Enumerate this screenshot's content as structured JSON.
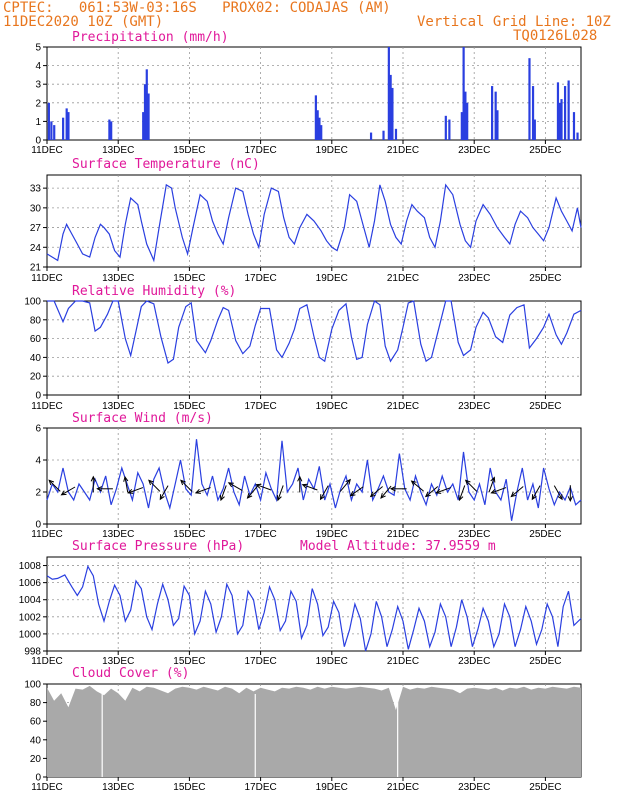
{
  "header": {
    "line1": "CPTEC:   061:53W-03:16S   PROX02: CODAJAS (AM)",
    "line2_left": "11DEC2020 10Z (GMT)",
    "line2_right": "Vertical Grid Line: 10Z",
    "line3_right": "TQ0126L028"
  },
  "colors": {
    "header": "#e8761e",
    "title": "#e0189a",
    "series": "#2a3fe0",
    "cloud": "#a9a9a9",
    "grid": "#999999"
  },
  "x_tick_labels": [
    "11DEC",
    "13DEC",
    "15DEC",
    "17DEC",
    "19DEC",
    "21DEC",
    "23DEC",
    "25DEC"
  ],
  "panels": {
    "precip": {
      "title": "Precipitation (mm/h)"
    },
    "temp": {
      "title": "Surface Temperature (nC)"
    },
    "rh": {
      "title": "Relative Humidity (%)"
    },
    "wind": {
      "title": "Surface Wind (m/s)"
    },
    "pres": {
      "title": "Surface Pressure (hPa)",
      "extra": "Model Altitude: 37.9559 m"
    },
    "cloud": {
      "title": "Cloud Cover (%)"
    }
  },
  "chart_data": [
    {
      "type": "bar",
      "title": "Precipitation (mm/h)",
      "ylim": [
        0,
        5
      ],
      "yticks": [
        0,
        1,
        2,
        3,
        4,
        5
      ],
      "x_domain_days": [
        11,
        26
      ],
      "x": [
        11.05,
        11.12,
        11.2,
        11.45,
        11.55,
        11.6,
        12.75,
        12.8,
        13.7,
        13.75,
        13.8,
        13.85,
        18.55,
        18.6,
        18.65,
        18.7,
        20.1,
        20.45,
        20.6,
        20.65,
        20.7,
        20.8,
        22.2,
        22.3,
        22.65,
        22.7,
        22.75,
        22.8,
        23.5,
        23.6,
        23.65,
        24.55,
        24.65,
        24.7,
        25.35,
        25.4,
        25.45,
        25.55,
        25.65,
        25.8,
        25.9
      ],
      "values": [
        2.0,
        1.0,
        0.8,
        1.2,
        1.7,
        1.5,
        1.1,
        1.0,
        1.5,
        3.0,
        3.8,
        2.5,
        2.4,
        1.6,
        1.2,
        0.8,
        0.4,
        0.5,
        5.0,
        3.5,
        2.8,
        0.6,
        1.3,
        1.1,
        1.5,
        5.0,
        2.6,
        2.0,
        2.9,
        2.6,
        1.6,
        4.4,
        2.9,
        1.1,
        3.1,
        2.0,
        2.2,
        2.9,
        3.2,
        1.5,
        0.4
      ]
    },
    {
      "type": "line",
      "title": "Surface Temperature (nC)",
      "ylim": [
        21,
        35
      ],
      "yticks": [
        21,
        24,
        27,
        30,
        33
      ],
      "x_domain_days": [
        11,
        26
      ],
      "x": [
        11.0,
        11.15,
        11.3,
        11.45,
        11.55,
        11.7,
        11.85,
        12.0,
        12.2,
        12.35,
        12.5,
        12.6,
        12.75,
        12.9,
        13.05,
        13.2,
        13.35,
        13.55,
        13.65,
        13.8,
        14.0,
        14.15,
        14.35,
        14.5,
        14.6,
        14.8,
        14.95,
        15.1,
        15.3,
        15.5,
        15.65,
        15.8,
        15.95,
        16.1,
        16.3,
        16.5,
        16.65,
        16.8,
        16.95,
        17.1,
        17.3,
        17.5,
        17.65,
        17.8,
        17.95,
        18.1,
        18.3,
        18.5,
        18.7,
        18.85,
        19.0,
        19.15,
        19.35,
        19.5,
        19.7,
        19.9,
        20.05,
        20.2,
        20.35,
        20.5,
        20.65,
        20.8,
        20.95,
        21.1,
        21.25,
        21.4,
        21.6,
        21.75,
        21.9,
        22.05,
        22.2,
        22.4,
        22.6,
        22.75,
        22.9,
        23.05,
        23.25,
        23.45,
        23.65,
        23.85,
        24.0,
        24.15,
        24.3,
        24.5,
        24.65,
        24.8,
        24.95,
        25.1,
        25.3,
        25.45,
        25.6,
        25.75,
        25.9,
        26.0
      ],
      "values": [
        23.0,
        22.5,
        22.0,
        26.0,
        27.5,
        26.0,
        24.5,
        23.0,
        22.5,
        25.5,
        27.5,
        27.0,
        26.0,
        23.5,
        22.5,
        27.5,
        31.5,
        30.5,
        28.0,
        24.5,
        22.0,
        27.0,
        33.5,
        33.0,
        30.0,
        25.5,
        23.0,
        27.0,
        32.0,
        31.0,
        28.0,
        26.0,
        24.5,
        28.5,
        33.0,
        32.5,
        29.0,
        26.0,
        24.0,
        29.0,
        33.0,
        32.5,
        28.5,
        25.5,
        24.5,
        27.0,
        29.0,
        28.0,
        26.5,
        25.0,
        24.0,
        23.5,
        27.0,
        32.0,
        31.0,
        27.0,
        24.0,
        28.0,
        33.5,
        31.0,
        27.5,
        25.5,
        24.5,
        28.0,
        30.5,
        29.5,
        28.5,
        25.5,
        24.0,
        28.0,
        33.5,
        32.0,
        27.5,
        25.0,
        24.0,
        28.0,
        30.5,
        29.0,
        27.0,
        25.5,
        24.5,
        27.5,
        29.5,
        28.5,
        27.0,
        26.0,
        25.0,
        27.0,
        31.5,
        29.5,
        28.0,
        26.5,
        30.0,
        27.0
      ]
    },
    {
      "type": "line",
      "title": "Relative Humidity (%)",
      "ylim": [
        0,
        100
      ],
      "yticks": [
        0,
        20,
        40,
        60,
        80,
        100
      ],
      "x_domain_days": [
        11,
        26
      ],
      "x": [
        11.0,
        11.2,
        11.45,
        11.6,
        11.8,
        12.0,
        12.2,
        12.35,
        12.5,
        12.7,
        12.85,
        13.0,
        13.2,
        13.35,
        13.5,
        13.65,
        13.8,
        14.0,
        14.2,
        14.4,
        14.55,
        14.7,
        14.9,
        15.05,
        15.2,
        15.45,
        15.6,
        15.8,
        15.95,
        16.1,
        16.3,
        16.5,
        16.7,
        16.85,
        17.0,
        17.25,
        17.45,
        17.6,
        17.8,
        17.95,
        18.1,
        18.3,
        18.5,
        18.65,
        18.8,
        19.0,
        19.2,
        19.4,
        19.55,
        19.7,
        19.85,
        20.0,
        20.2,
        20.35,
        20.5,
        20.65,
        20.85,
        21.0,
        21.15,
        21.3,
        21.5,
        21.65,
        21.8,
        22.0,
        22.2,
        22.35,
        22.55,
        22.7,
        22.9,
        23.05,
        23.25,
        23.4,
        23.6,
        23.8,
        24.0,
        24.2,
        24.4,
        24.55,
        24.75,
        24.95,
        25.1,
        25.3,
        25.45,
        25.6,
        25.8,
        26.0
      ],
      "values": [
        100,
        100,
        78,
        92,
        100,
        100,
        98,
        68,
        72,
        86,
        100,
        100,
        60,
        42,
        68,
        94,
        100,
        97,
        62,
        34,
        38,
        72,
        94,
        98,
        58,
        45,
        58,
        80,
        93,
        90,
        58,
        44,
        52,
        74,
        92,
        92,
        48,
        40,
        55,
        70,
        92,
        96,
        62,
        40,
        36,
        70,
        90,
        97,
        62,
        38,
        40,
        75,
        100,
        96,
        52,
        36,
        48,
        72,
        98,
        100,
        54,
        36,
        40,
        70,
        100,
        100,
        56,
        42,
        48,
        72,
        88,
        82,
        62,
        56,
        85,
        93,
        96,
        50,
        60,
        72,
        86,
        64,
        54,
        66,
        86,
        90
      ]
    },
    {
      "type": "line",
      "title": "Surface Wind (m/s)",
      "ylim": [
        0,
        6
      ],
      "yticks": [
        0,
        2,
        4,
        6
      ],
      "x_domain_days": [
        11,
        26
      ],
      "x": [
        11.0,
        11.15,
        11.3,
        11.45,
        11.6,
        11.75,
        11.9,
        12.05,
        12.2,
        12.35,
        12.5,
        12.65,
        12.8,
        12.95,
        13.1,
        13.25,
        13.4,
        13.55,
        13.7,
        13.85,
        14.0,
        14.15,
        14.3,
        14.45,
        14.6,
        14.75,
        14.9,
        15.05,
        15.2,
        15.35,
        15.5,
        15.65,
        15.8,
        15.95,
        16.1,
        16.25,
        16.4,
        16.55,
        16.7,
        16.85,
        17.0,
        17.15,
        17.3,
        17.45,
        17.6,
        17.75,
        17.9,
        18.05,
        18.2,
        18.35,
        18.5,
        18.65,
        18.8,
        18.95,
        19.1,
        19.25,
        19.4,
        19.55,
        19.7,
        19.85,
        20.0,
        20.15,
        20.3,
        20.45,
        20.6,
        20.75,
        20.9,
        21.05,
        21.2,
        21.35,
        21.5,
        21.65,
        21.8,
        21.95,
        22.1,
        22.25,
        22.4,
        22.55,
        22.7,
        22.85,
        23.0,
        23.15,
        23.3,
        23.45,
        23.6,
        23.75,
        23.9,
        24.05,
        24.2,
        24.35,
        24.5,
        24.65,
        24.8,
        24.95,
        25.1,
        25.25,
        25.4,
        25.55,
        25.7,
        25.85,
        26.0
      ],
      "values": [
        1.5,
        2.5,
        2.0,
        3.5,
        2.0,
        1.5,
        2.5,
        2.0,
        1.5,
        2.8,
        2.0,
        3.0,
        1.2,
        2.2,
        3.5,
        2.5,
        1.5,
        3.2,
        2.5,
        1.0,
        2.8,
        3.5,
        2.0,
        1.0,
        2.5,
        4.0,
        2.2,
        1.8,
        5.3,
        2.5,
        1.8,
        3.0,
        1.5,
        2.2,
        3.5,
        2.0,
        1.2,
        3.0,
        1.8,
        2.5,
        1.5,
        3.2,
        2.2,
        1.5,
        5.2,
        2.0,
        2.5,
        3.5,
        1.5,
        2.8,
        2.2,
        3.6,
        1.5,
        2.5,
        1.0,
        2.2,
        3.0,
        1.5,
        2.5,
        2.0,
        4.0,
        1.5,
        2.2,
        3.0,
        2.0,
        1.8,
        4.4,
        2.2,
        1.5,
        3.0,
        2.0,
        1.2,
        2.5,
        1.8,
        3.0,
        2.0,
        2.5,
        1.5,
        4.5,
        2.0,
        1.5,
        2.5,
        1.2,
        3.5,
        2.0,
        1.5,
        2.8,
        0.2,
        2.0,
        3.5,
        1.5,
        2.5,
        1.0,
        3.5,
        2.2,
        1.2,
        2.0,
        1.5,
        2.3,
        1.2,
        1.5
      ],
      "arrow_x": [
        11.3,
        11.7,
        12.3,
        12.75,
        13.25,
        13.6,
        14.1,
        14.35,
        15.0,
        15.5,
        16.0,
        16.4,
        16.85,
        17.2,
        17.6,
        18.1,
        18.5,
        18.85,
        19.3,
        19.8,
        20.35,
        20.6,
        21.0,
        21.5,
        21.9,
        22.25,
        22.7,
        23.0,
        23.45,
        23.8,
        24.3,
        24.8,
        25.3,
        25.7
      ],
      "arrow_dir": [
        135,
        210,
        90,
        180,
        100,
        200,
        135,
        240,
        135,
        200,
        250,
        150,
        230,
        160,
        250,
        90,
        160,
        240,
        50,
        215,
        220,
        230,
        180,
        140,
        220,
        200,
        250,
        135,
        70,
        200,
        220,
        240,
        300,
        270
      ]
    },
    {
      "type": "line",
      "title": "Surface Pressure (hPa)",
      "ylim": [
        998,
        1009
      ],
      "yticks": [
        998,
        1000,
        1002,
        1004,
        1006,
        1008
      ],
      "x_domain_days": [
        11,
        26
      ],
      "x": [
        11.0,
        11.15,
        11.3,
        11.5,
        11.7,
        11.85,
        12.0,
        12.15,
        12.3,
        12.45,
        12.6,
        12.75,
        12.9,
        13.05,
        13.2,
        13.35,
        13.5,
        13.65,
        13.8,
        13.95,
        14.1,
        14.25,
        14.4,
        14.55,
        14.7,
        14.85,
        15.0,
        15.15,
        15.3,
        15.45,
        15.6,
        15.75,
        15.9,
        16.05,
        16.2,
        16.35,
        16.5,
        16.65,
        16.8,
        16.95,
        17.1,
        17.25,
        17.4,
        17.55,
        17.7,
        17.85,
        18.0,
        18.15,
        18.3,
        18.45,
        18.6,
        18.75,
        18.9,
        19.05,
        19.2,
        19.35,
        19.5,
        19.65,
        19.8,
        19.95,
        20.1,
        20.25,
        20.4,
        20.55,
        20.7,
        20.85,
        21.0,
        21.15,
        21.3,
        21.45,
        21.6,
        21.75,
        21.9,
        22.05,
        22.2,
        22.35,
        22.5,
        22.65,
        22.8,
        22.95,
        23.1,
        23.25,
        23.4,
        23.55,
        23.7,
        23.85,
        24.0,
        24.15,
        24.3,
        24.45,
        24.6,
        24.75,
        24.9,
        25.05,
        25.2,
        25.35,
        25.5,
        25.65,
        25.8,
        26.0
      ],
      "values": [
        1006.8,
        1006.4,
        1006.5,
        1006.9,
        1005.5,
        1004.5,
        1005.5,
        1007.9,
        1006.8,
        1003.5,
        1001.5,
        1003.8,
        1005.7,
        1004.5,
        1001.5,
        1002.8,
        1006.2,
        1005.3,
        1002.0,
        1000.5,
        1003.5,
        1005.8,
        1004.0,
        1001.0,
        1001.8,
        1005.6,
        1004.5,
        1000.0,
        1001.5,
        1005.0,
        1003.5,
        1000.2,
        1002.0,
        1005.8,
        1004.5,
        1000.0,
        1001.0,
        1005.0,
        1004.0,
        1000.5,
        1002.5,
        1005.5,
        1004.0,
        1000.4,
        1001.5,
        1005.0,
        1003.8,
        999.5,
        1001.0,
        1005.3,
        1003.5,
        999.8,
        1000.8,
        1003.8,
        1002.5,
        998.5,
        1000.5,
        1003.5,
        1001.8,
        998.0,
        1000.0,
        1003.8,
        1002.0,
        998.5,
        1000.5,
        1003.2,
        1001.5,
        998.2,
        1000.5,
        1003.0,
        1001.5,
        998.5,
        1000.2,
        1003.5,
        1002.0,
        998.5,
        1000.8,
        1004.0,
        1002.0,
        998.5,
        1000.5,
        1003.0,
        1001.5,
        998.5,
        1000.0,
        1003.5,
        1002.0,
        998.5,
        1000.5,
        1003.2,
        1001.5,
        998.8,
        1000.5,
        1003.5,
        1002.0,
        998.5,
        1003.2,
        1005.0,
        1001.0,
        1001.8
      ]
    },
    {
      "type": "area",
      "title": "Cloud Cover (%)",
      "ylim": [
        0,
        100
      ],
      "yticks": [
        0,
        20,
        40,
        60,
        80,
        100
      ],
      "x_domain_days": [
        11,
        26
      ],
      "x": [
        11.0,
        11.2,
        11.4,
        11.6,
        11.8,
        12.0,
        12.2,
        12.4,
        12.6,
        12.8,
        13.0,
        13.2,
        13.4,
        13.6,
        13.8,
        14.0,
        14.2,
        14.4,
        14.6,
        14.8,
        15.0,
        15.2,
        15.4,
        15.6,
        15.8,
        16.0,
        16.2,
        16.4,
        16.6,
        16.8,
        17.0,
        17.2,
        17.4,
        17.6,
        17.8,
        18.0,
        18.2,
        18.4,
        18.6,
        18.8,
        19.0,
        19.2,
        19.4,
        19.6,
        19.8,
        20.0,
        20.2,
        20.4,
        20.6,
        20.8,
        21.0,
        21.2,
        21.4,
        21.6,
        21.8,
        22.0,
        22.2,
        22.4,
        22.6,
        22.8,
        23.0,
        23.2,
        23.4,
        23.6,
        23.8,
        24.0,
        24.2,
        24.4,
        24.6,
        24.8,
        25.0,
        25.2,
        25.4,
        25.6,
        25.8,
        26.0
      ],
      "values": [
        96,
        82,
        90,
        75,
        95,
        94,
        98,
        92,
        88,
        95,
        90,
        82,
        96,
        92,
        97,
        96,
        93,
        90,
        95,
        97,
        96,
        94,
        97,
        95,
        93,
        97,
        95,
        90,
        96,
        92,
        96,
        94,
        92,
        96,
        95,
        97,
        96,
        94,
        97,
        95,
        97,
        96,
        95,
        96,
        97,
        96,
        95,
        93,
        96,
        72,
        97,
        94,
        96,
        95,
        97,
        96,
        95,
        94,
        90,
        95,
        96,
        95,
        94,
        96,
        93,
        96,
        95,
        97,
        94,
        96,
        95,
        97,
        96,
        95,
        97,
        96
      ]
    }
  ]
}
